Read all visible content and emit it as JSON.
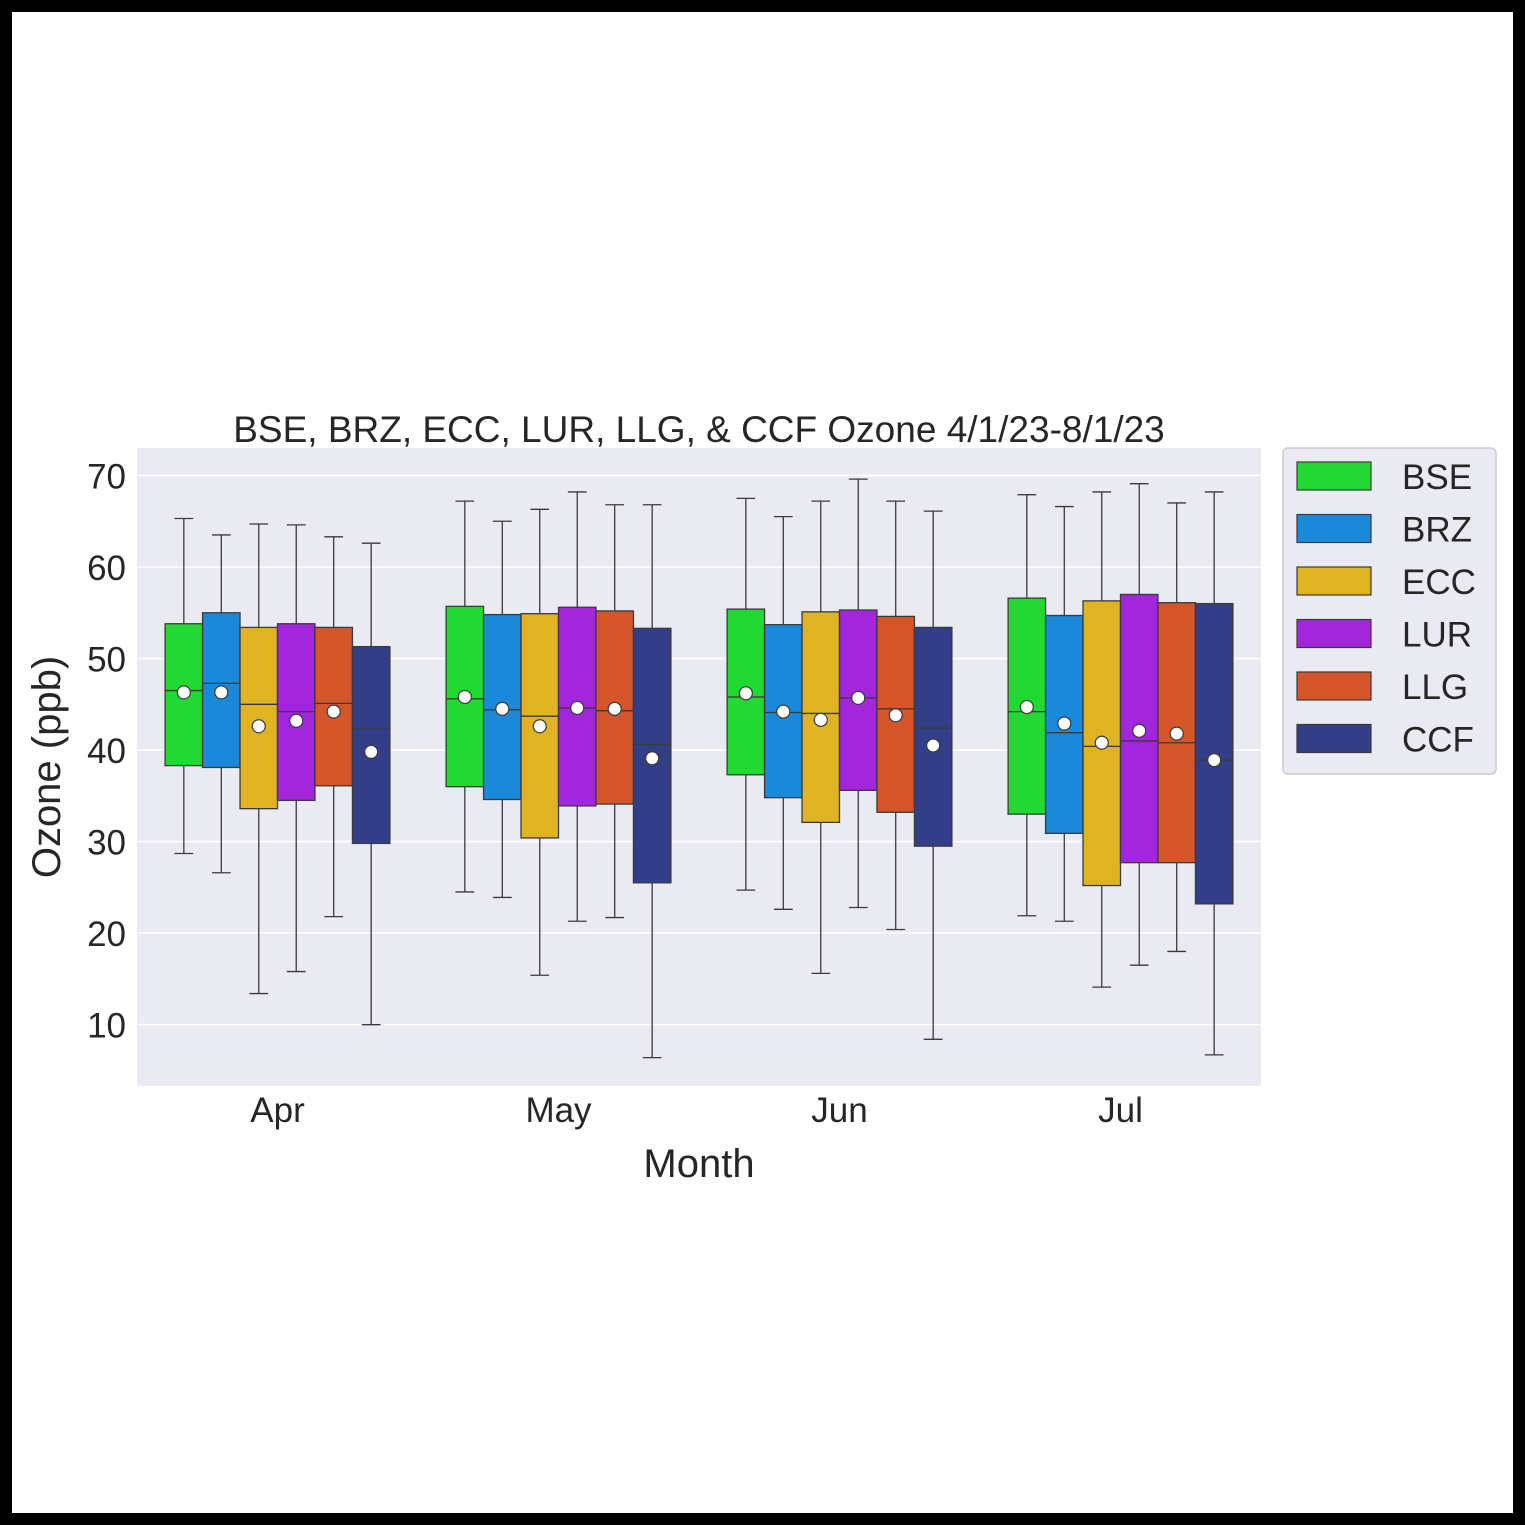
{
  "chart_data": {
    "type": "box",
    "title": "BSE, BRZ, ECC, LUR, LLG, & CCF Ozone 4/1/23-8/1/23",
    "xlabel": "Month",
    "ylabel": "Ozone (ppb)",
    "categories": [
      "Apr",
      "May",
      "Jun",
      "Jul"
    ],
    "ylim": [
      3.3,
      73.0
    ],
    "yticks": [
      10,
      20,
      30,
      40,
      50,
      60,
      70
    ],
    "grid": true,
    "legend_position": "outside-right-top",
    "series": [
      {
        "name": "BSE",
        "color": "#22d832",
        "boxes": [
          {
            "whislo": 28.7,
            "q1": 38.3,
            "med": 46.5,
            "q3": 53.8,
            "whishi": 65.3,
            "mean": 46.3
          },
          {
            "whislo": 24.5,
            "q1": 36.0,
            "med": 45.6,
            "q3": 55.7,
            "whishi": 67.2,
            "mean": 45.8
          },
          {
            "whislo": 24.7,
            "q1": 37.3,
            "med": 45.8,
            "q3": 55.4,
            "whishi": 67.5,
            "mean": 46.2
          },
          {
            "whislo": 21.9,
            "q1": 33.0,
            "med": 44.2,
            "q3": 56.6,
            "whishi": 67.9,
            "mean": 44.7
          }
        ]
      },
      {
        "name": "BRZ",
        "color": "#1b89d9",
        "boxes": [
          {
            "whislo": 26.6,
            "q1": 38.1,
            "med": 47.3,
            "q3": 55.0,
            "whishi": 63.5,
            "mean": 46.3
          },
          {
            "whislo": 23.9,
            "q1": 34.6,
            "med": 44.4,
            "q3": 54.8,
            "whishi": 65.0,
            "mean": 44.5
          },
          {
            "whislo": 22.6,
            "q1": 34.8,
            "med": 44.1,
            "q3": 53.7,
            "whishi": 65.5,
            "mean": 44.2
          },
          {
            "whislo": 21.3,
            "q1": 30.9,
            "med": 41.9,
            "q3": 54.7,
            "whishi": 66.6,
            "mean": 42.9
          }
        ]
      },
      {
        "name": "ECC",
        "color": "#e0b323",
        "boxes": [
          {
            "whislo": 13.4,
            "q1": 33.6,
            "med": 45.0,
            "q3": 53.4,
            "whishi": 64.7,
            "mean": 42.6
          },
          {
            "whislo": 15.4,
            "q1": 30.4,
            "med": 43.7,
            "q3": 54.9,
            "whishi": 66.3,
            "mean": 42.6
          },
          {
            "whislo": 15.6,
            "q1": 32.1,
            "med": 44.0,
            "q3": 55.1,
            "whishi": 67.2,
            "mean": 43.3
          },
          {
            "whislo": 14.1,
            "q1": 25.2,
            "med": 40.4,
            "q3": 56.3,
            "whishi": 68.2,
            "mean": 40.8
          }
        ]
      },
      {
        "name": "LUR",
        "color": "#a126dc",
        "boxes": [
          {
            "whislo": 15.8,
            "q1": 34.5,
            "med": 44.2,
            "q3": 53.8,
            "whishi": 64.6,
            "mean": 43.2
          },
          {
            "whislo": 21.3,
            "q1": 33.9,
            "med": 44.6,
            "q3": 55.6,
            "whishi": 68.2,
            "mean": 44.6
          },
          {
            "whislo": 22.8,
            "q1": 35.6,
            "med": 45.7,
            "q3": 55.3,
            "whishi": 69.6,
            "mean": 45.7
          },
          {
            "whislo": 16.5,
            "q1": 27.7,
            "med": 41.0,
            "q3": 57.0,
            "whishi": 69.1,
            "mean": 42.1
          }
        ]
      },
      {
        "name": "LLG",
        "color": "#d4552a",
        "boxes": [
          {
            "whislo": 21.8,
            "q1": 36.1,
            "med": 45.1,
            "q3": 53.4,
            "whishi": 63.3,
            "mean": 44.2
          },
          {
            "whislo": 21.7,
            "q1": 34.1,
            "med": 44.3,
            "q3": 55.2,
            "whishi": 66.8,
            "mean": 44.5
          },
          {
            "whislo": 20.4,
            "q1": 33.2,
            "med": 44.5,
            "q3": 54.6,
            "whishi": 67.2,
            "mean": 43.8
          },
          {
            "whislo": 18.0,
            "q1": 27.7,
            "med": 40.8,
            "q3": 56.1,
            "whishi": 67.0,
            "mean": 41.8
          }
        ]
      },
      {
        "name": "CCF",
        "color": "#333e88",
        "boxes": [
          {
            "whislo": 10.0,
            "q1": 29.8,
            "med": 42.3,
            "q3": 51.3,
            "whishi": 62.6,
            "mean": 39.8
          },
          {
            "whislo": 6.4,
            "q1": 25.5,
            "med": 40.6,
            "q3": 53.3,
            "whishi": 66.8,
            "mean": 39.1
          },
          {
            "whislo": 8.4,
            "q1": 29.5,
            "med": 42.4,
            "q3": 53.4,
            "whishi": 66.1,
            "mean": 40.5
          },
          {
            "whislo": 6.7,
            "q1": 23.2,
            "med": 38.9,
            "q3": 56.0,
            "whishi": 68.2,
            "mean": 38.9
          }
        ]
      }
    ]
  }
}
